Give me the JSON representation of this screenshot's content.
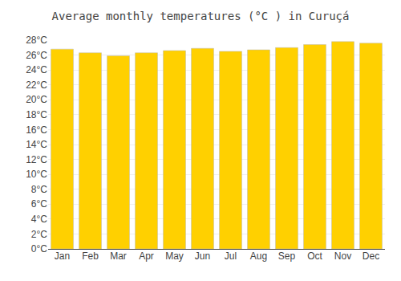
{
  "chart_data": {
    "type": "bar",
    "title": "Average monthly temperatures (°C ) in Curuçá",
    "categories": [
      "Jan",
      "Feb",
      "Mar",
      "Apr",
      "May",
      "Jun",
      "Jul",
      "Aug",
      "Sep",
      "Oct",
      "Nov",
      "Dec"
    ],
    "values": [
      26.8,
      26.3,
      25.9,
      26.3,
      26.6,
      26.9,
      26.5,
      26.7,
      27.0,
      27.4,
      27.8,
      27.6
    ],
    "color": "#FFD000",
    "ylim": [
      0,
      28
    ],
    "yticks": [
      {
        "value": 0,
        "label": "0°C"
      },
      {
        "value": 2,
        "label": "2°C"
      },
      {
        "value": 4,
        "label": "4°C"
      },
      {
        "value": 6,
        "label": "6°C"
      },
      {
        "value": 8,
        "label": "8°C"
      },
      {
        "value": 10,
        "label": "10°C"
      },
      {
        "value": 12,
        "label": "12°C"
      },
      {
        "value": 14,
        "label": "14°C"
      },
      {
        "value": 16,
        "label": "16°C"
      },
      {
        "value": 18,
        "label": "18°C"
      },
      {
        "value": 20,
        "label": "20°C"
      },
      {
        "value": 22,
        "label": "22°C"
      },
      {
        "value": 24,
        "label": "24°C"
      },
      {
        "value": 26,
        "label": "26°C"
      },
      {
        "value": 28,
        "label": "28°C"
      }
    ],
    "grid": true
  }
}
